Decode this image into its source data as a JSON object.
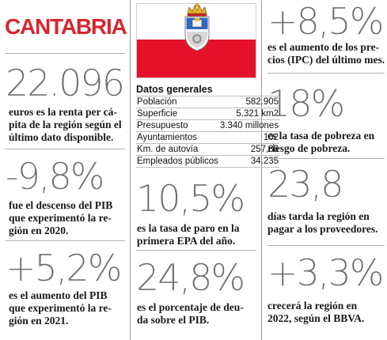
{
  "region": "CANTABRIA",
  "colors": {
    "title_red": "#d8262e",
    "flag_red": "#e5112a",
    "stat_gray": "#6d6d6d"
  },
  "col1": [
    {
      "value": "22.096",
      "desc": [
        "euros es la renta per cá-",
        "pita de la región según el",
        "último dato disponible."
      ]
    },
    {
      "value": "-9,8%",
      "desc": [
        "fue el descenso del PIB",
        "que experimentó la re-",
        "gión en 2020."
      ]
    },
    {
      "value": "+5,2%",
      "desc": [
        "es el aumento del PIB",
        "que experimentó la re-",
        "gión en 2021."
      ]
    }
  ],
  "general": {
    "title": "Datos generales",
    "rows": [
      {
        "label": "Población",
        "value": "582.905"
      },
      {
        "label": "Superficie",
        "value": "5.321 km2"
      },
      {
        "label": "Presupuesto",
        "value": "3.340 millones"
      },
      {
        "label": "Ayuntamientos",
        "value": "102"
      },
      {
        "label": "Km. de autovía",
        "value": "257,86"
      },
      {
        "label": "Empleados públicos",
        "value": "34.235"
      }
    ]
  },
  "col2": [
    {
      "value": "10,5%",
      "desc": [
        "es la tasa de paro en la",
        "primera EPA del año."
      ]
    },
    {
      "value": "24,8%",
      "desc": [
        "es el porcentaje de deu-",
        "da sobre el PIB."
      ]
    }
  ],
  "col3": [
    {
      "value": "+8,5%",
      "desc": [
        "es el aumento de los pre-",
        "cios (IPC) del último mes."
      ]
    },
    {
      "value": "18%",
      "desc": [
        "es la tasa de pobreza en",
        "riesgo de pobreza."
      ]
    },
    {
      "value": "23,8",
      "desc": [
        "días tarda la región en",
        "pagar a los proveedores."
      ]
    },
    {
      "value": "+3,3%",
      "desc": [
        "crecerá la región en",
        "2022, según el BBVA."
      ]
    }
  ]
}
